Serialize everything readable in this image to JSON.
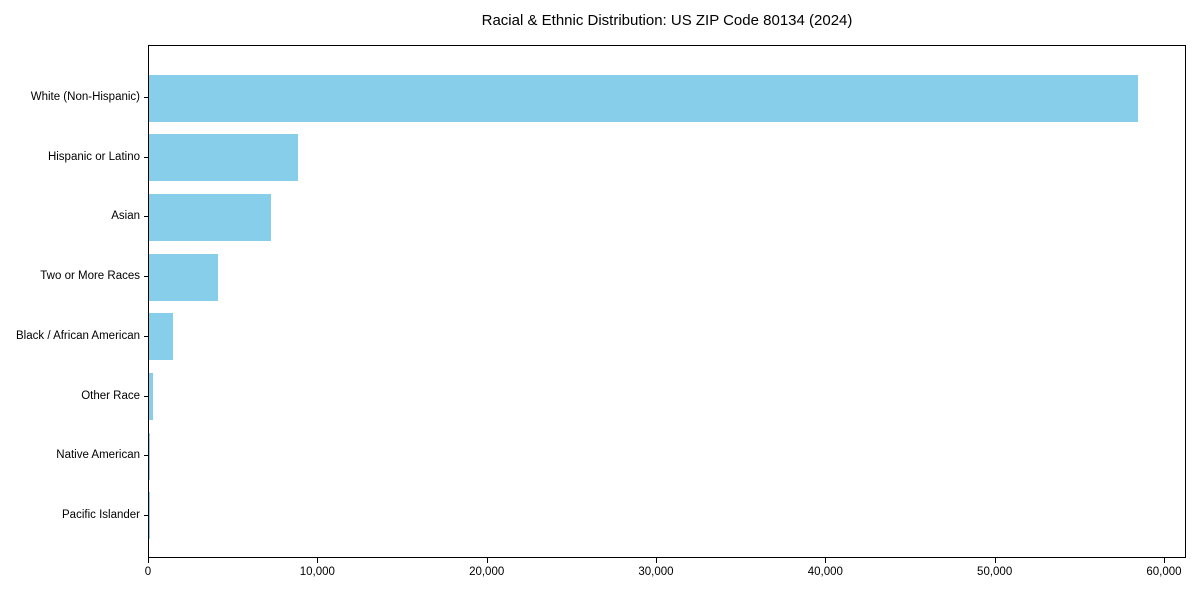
{
  "chart_data": {
    "type": "bar",
    "orientation": "horizontal",
    "title": "Racial & Ethnic Distribution: US ZIP Code 80134 (2024)",
    "categories": [
      "White (Non-Hispanic)",
      "Hispanic or Latino",
      "Asian",
      "Two or More Races",
      "Black / African American",
      "Other Race",
      "Native American",
      "Pacific Islander"
    ],
    "values": [
      58400,
      8800,
      7200,
      4100,
      1400,
      260,
      80,
      30
    ],
    "xlabel": "",
    "ylabel": "",
    "xlim": [
      0,
      61300
    ],
    "x_ticks": {
      "values": [
        0,
        10000,
        20000,
        30000,
        40000,
        50000,
        60000
      ],
      "labels": [
        "0",
        "10,000",
        "20,000",
        "30,000",
        "40,000",
        "50,000",
        "60,000"
      ]
    },
    "bar_color": "#87ceeb",
    "grid": false,
    "legend_position": "none",
    "background_color": "#ffffff",
    "axis_color": "#000000"
  }
}
